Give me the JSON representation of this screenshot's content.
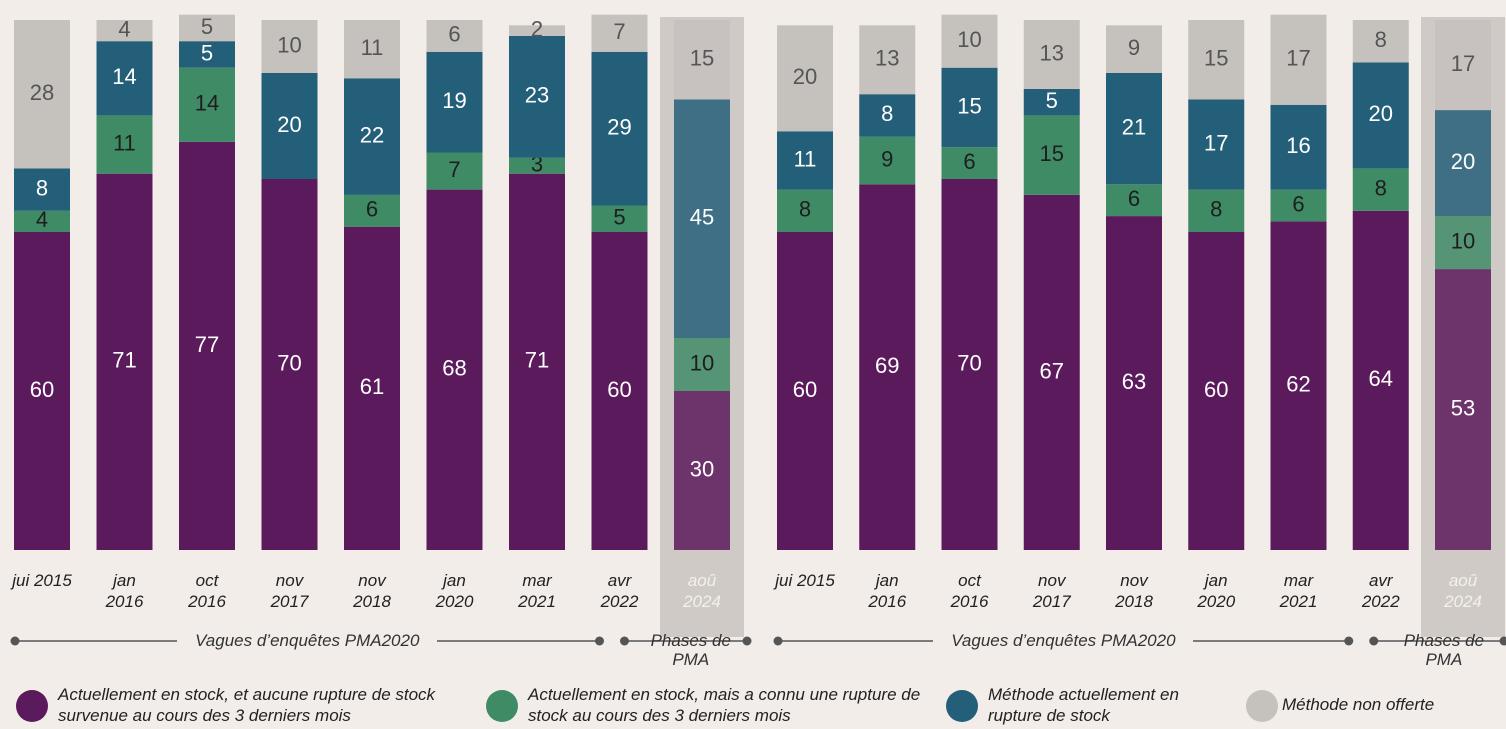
{
  "chart_data": [
    {
      "type": "stacked_bar",
      "categories": [
        "jui 2015",
        "jan 2016",
        "oct 2016",
        "nov 2017",
        "nov 2018",
        "jan 2020",
        "mar 2021",
        "avr 2022",
        "aoû 2024"
      ],
      "series": [
        {
          "name": "Actuellement en stock, et aucune rupture de stock survenue au cours des 3 derniers mois",
          "color": "#5b1a5b",
          "values": [
            60,
            71,
            77,
            70,
            61,
            68,
            71,
            60,
            30
          ]
        },
        {
          "name": "Actuellement en stock, mais a connu une rupture de stock au cours des 3 derniers mois",
          "color": "#3f8b66",
          "values": [
            4,
            11,
            14,
            null,
            6,
            7,
            3,
            5,
            10
          ]
        },
        {
          "name": "Méthode actuellement en rupture de stock",
          "color": "#245f79",
          "values": [
            8,
            14,
            5,
            20,
            22,
            19,
            23,
            29,
            45
          ]
        },
        {
          "name": "Méthode non offerte",
          "color": "#c5c1bd",
          "values": [
            28,
            4,
            5,
            10,
            11,
            6,
            2,
            7,
            15
          ]
        }
      ],
      "ylim": [
        0,
        100
      ],
      "highlight_index": 8,
      "annotations": [
        "Vagues d’enquêtes PMA2020",
        "Phases de PMA"
      ]
    },
    {
      "type": "stacked_bar",
      "categories": [
        "jui 2015",
        "jan 2016",
        "oct 2016",
        "nov 2017",
        "nov 2018",
        "jan 2020",
        "mar 2021",
        "avr 2022",
        "aoû 2024"
      ],
      "series": [
        {
          "color": "#5b1a5b",
          "values": [
            60,
            69,
            70,
            67,
            63,
            60,
            62,
            64,
            53
          ]
        },
        {
          "color": "#3f8b66",
          "values": [
            8,
            9,
            6,
            15,
            6,
            8,
            6,
            8,
            10
          ]
        },
        {
          "color": "#245f79",
          "values": [
            11,
            8,
            15,
            5,
            21,
            17,
            16,
            20,
            20
          ]
        },
        {
          "color": "#c5c1bd",
          "values": [
            20,
            13,
            10,
            13,
            9,
            15,
            17,
            8,
            17
          ]
        }
      ],
      "ylim": [
        0,
        100
      ],
      "highlight_index": 8,
      "annotations": [
        "Vagues d’enquêtes PMA2020",
        "Phases de PMA"
      ]
    }
  ]
}
